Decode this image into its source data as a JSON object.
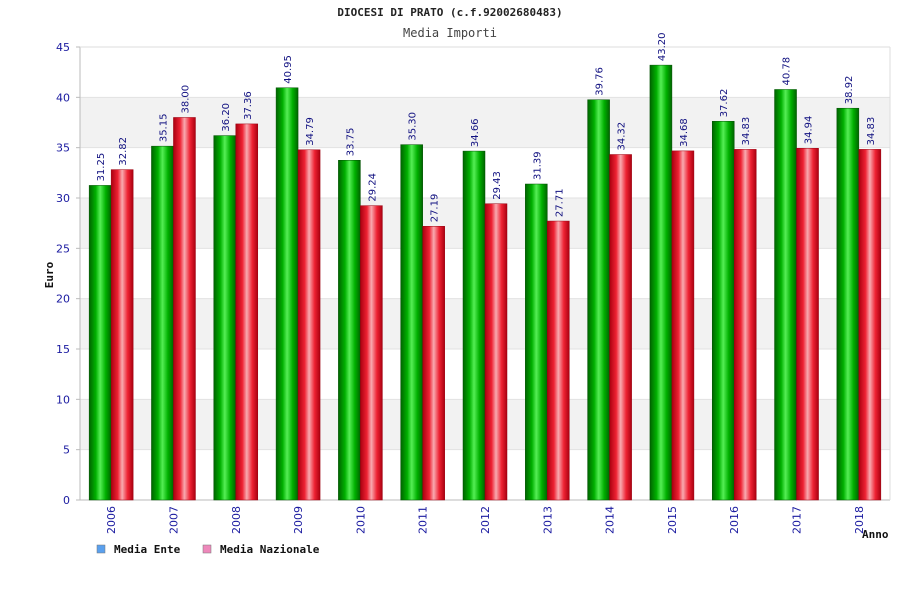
{
  "colors": {
    "ente": "#00b000",
    "nazionale": "#ee2233",
    "legend_ente": "#5aa0ee",
    "legend_nazionale": "#ee88bb",
    "grid_band": "#f2f2f2",
    "axis": "#bbbbbb",
    "tick_text": "#1a1aa0"
  },
  "chart_data": {
    "type": "bar",
    "title": "DIOCESI DI PRATO (c.f.92002680483)",
    "subtitle": "Media Importi",
    "xlabel": "Anno",
    "ylabel": "Euro",
    "ylim": [
      0,
      45
    ],
    "yticks": [
      0,
      5,
      10,
      15,
      20,
      25,
      30,
      35,
      40,
      45
    ],
    "grid": true,
    "legend_position": "bottom-left",
    "categories": [
      "2006",
      "2007",
      "2008",
      "2009",
      "2010",
      "2011",
      "2012",
      "2013",
      "2014",
      "2015",
      "2016",
      "2017",
      "2018"
    ],
    "series": [
      {
        "name": "Media Ente",
        "values": [
          31.25,
          35.15,
          36.2,
          40.95,
          33.75,
          35.3,
          34.66,
          31.39,
          39.76,
          43.2,
          37.62,
          40.78,
          38.92
        ],
        "labels": [
          "31.25",
          "35.15",
          "36.20",
          "40.95",
          "33.75",
          "35.30",
          "34.66",
          "31.39",
          "39.76",
          "43.20",
          "37.62",
          "40.78",
          "38.92"
        ]
      },
      {
        "name": "Media Nazionale",
        "values": [
          32.82,
          38.0,
          37.36,
          34.79,
          29.24,
          27.19,
          29.43,
          27.71,
          34.32,
          34.68,
          34.83,
          34.94,
          34.83
        ],
        "labels": [
          "32.82",
          "38.00",
          "37.36",
          "34.79",
          "29.24",
          "27.19",
          "29.43",
          "27.71",
          "34.32",
          "34.68",
          "34.83",
          "34.94",
          "34.83"
        ]
      }
    ]
  }
}
